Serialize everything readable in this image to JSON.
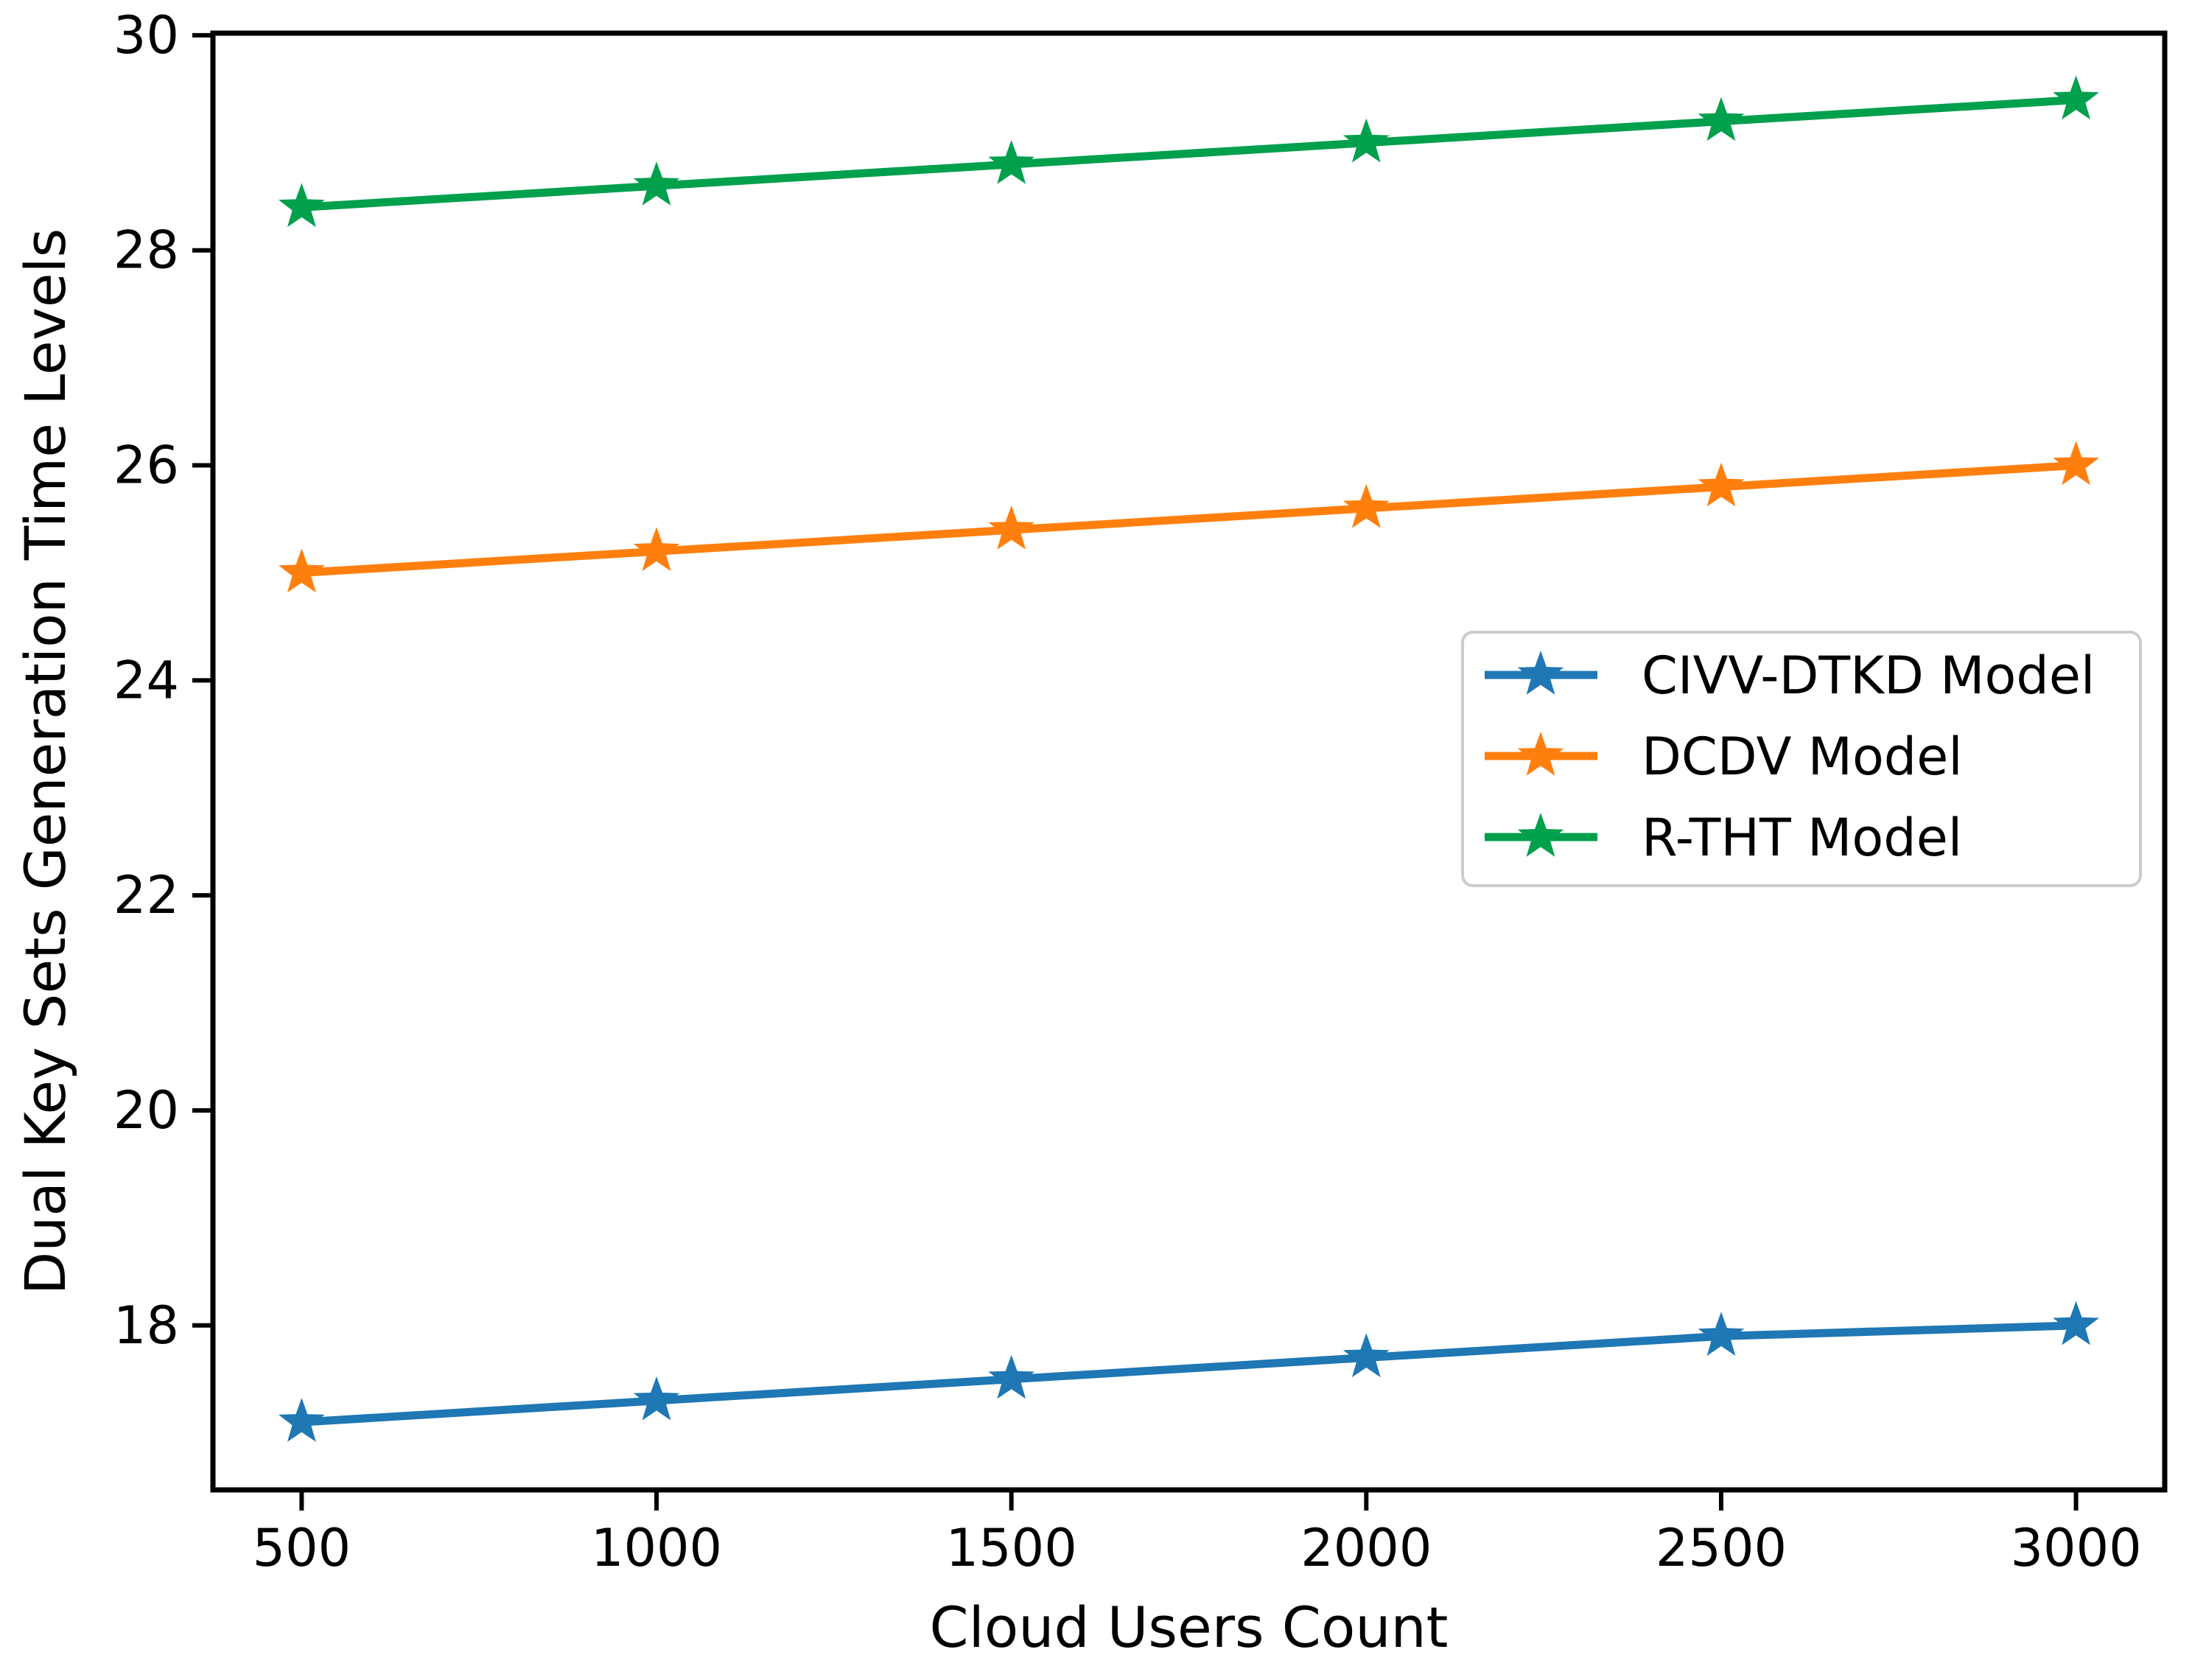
{
  "figure": {
    "background": "#ffffff",
    "axis_color": "#000000",
    "tick_label_color": "#000000",
    "legend_border_color": "#cccccc",
    "legend_background": "#ffffff"
  },
  "chart_data": {
    "type": "line",
    "title": "",
    "xlabel": "Cloud Users Count",
    "ylabel": "Dual Key Sets Generation Time Levels",
    "x": [
      500,
      1000,
      1500,
      2000,
      2500,
      3000
    ],
    "series": [
      {
        "name": "CIVV-DTKD Model",
        "color": "#1f77b4",
        "marker": "star",
        "values": [
          17.1,
          17.3,
          17.5,
          17.7,
          17.9,
          18.0
        ]
      },
      {
        "name": "DCDV Model",
        "color": "#ff7f0e",
        "marker": "star",
        "values": [
          25.0,
          25.2,
          25.4,
          25.6,
          25.8,
          26.0
        ]
      },
      {
        "name": "R-THT Model",
        "color": "#00a04d",
        "marker": "star",
        "values": [
          28.4,
          28.6,
          28.8,
          29.0,
          29.2,
          29.4
        ]
      }
    ],
    "xticks": [
      "500",
      "1000",
      "1500",
      "2000",
      "2500",
      "3000"
    ],
    "xtick_values": [
      500,
      1000,
      1500,
      2000,
      2500,
      3000
    ],
    "yticks": [
      "18",
      "20",
      "22",
      "24",
      "26",
      "28",
      "30"
    ],
    "ytick_values": [
      18,
      20,
      22,
      24,
      26,
      28,
      30
    ],
    "xlim": [
      375,
      3125
    ],
    "ylim": [
      16.47,
      30.02
    ],
    "grid": false,
    "legend": {
      "visible": true,
      "position": "center-right",
      "entries": [
        "CIVV-DTKD Model",
        "DCDV Model",
        "R-THT Model"
      ]
    }
  }
}
